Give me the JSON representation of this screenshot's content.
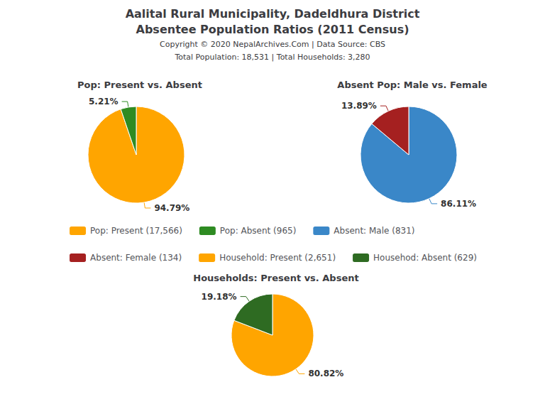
{
  "title": "Aalital Rural Municipality, Dadeldhura District",
  "subtitle": "Absentee Population Ratios (2011 Census)",
  "annotations": [
    "Copyright © 2020 NepalArchives.Com | Data Source: CBS",
    "Total Population: 18,531 | Total Households: 3,280"
  ],
  "chart_data": [
    {
      "type": "pie",
      "title": "Pop: Present vs. Absent",
      "categories": [
        "Pop: Present (17,566)",
        "Pop: Absent (965)"
      ],
      "values": [
        94.79,
        5.21
      ],
      "value_labels": [
        "94.79%",
        "5.21%"
      ],
      "colors": [
        "#FFA500",
        "#2E8B22"
      ],
      "data_labels": true,
      "legend": "center"
    },
    {
      "type": "pie",
      "title": "Absent Pop: Male vs. Female",
      "categories": [
        "Absent: Male (831)",
        "Absent: Female (134)"
      ],
      "values": [
        86.11,
        13.89
      ],
      "value_labels": [
        "86.11%",
        "13.89%"
      ],
      "colors": [
        "#3A87C8",
        "#A52020"
      ],
      "data_labels": true,
      "legend": "center"
    },
    {
      "type": "pie",
      "title": "Households: Present vs. Absent",
      "categories": [
        "Household: Present (2,651)",
        "Househod: Absent (629)"
      ],
      "values": [
        80.82,
        19.18
      ],
      "value_labels": [
        "80.82%",
        "19.18%"
      ],
      "colors": [
        "#FFA500",
        "#2E6B22"
      ],
      "data_labels": true,
      "legend": "center"
    }
  ]
}
